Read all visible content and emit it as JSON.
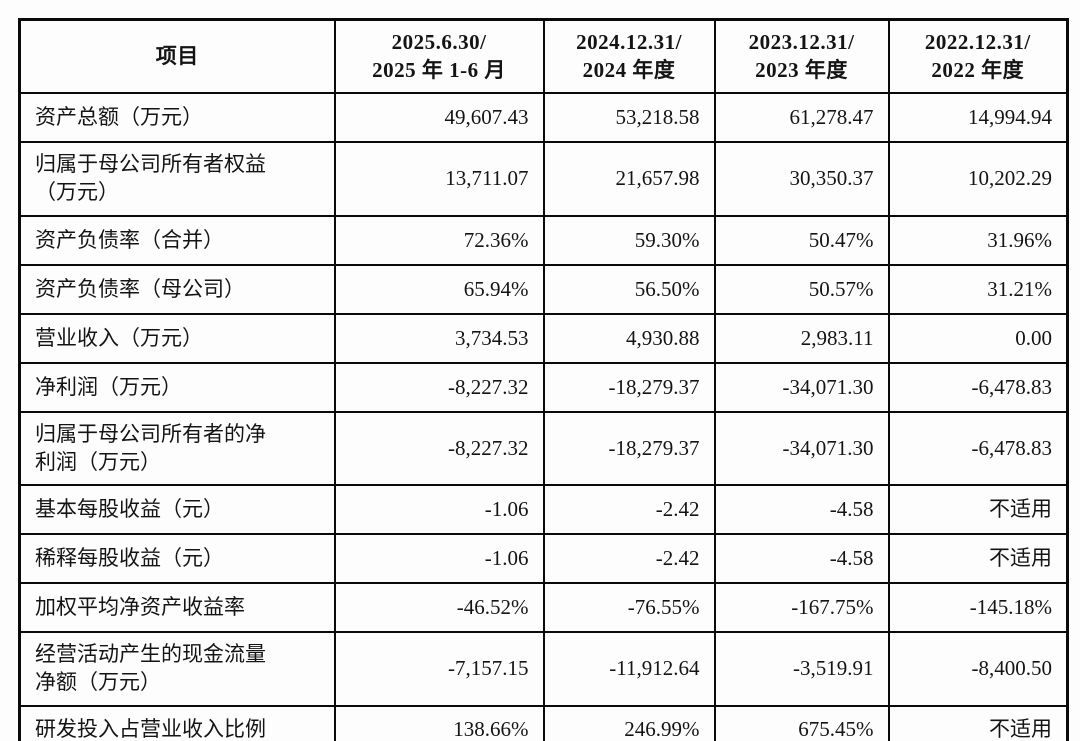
{
  "table": {
    "columns": [
      "项目",
      "2025.6.30/\n2025 年 1-6 月",
      "2024.12.31/\n2024 年度",
      "2023.12.31/\n2023 年度",
      "2022.12.31/\n2022 年度"
    ],
    "rows": [
      {
        "label": "资产总额（万元）",
        "values": [
          "49,607.43",
          "53,218.58",
          "61,278.47",
          "14,994.94"
        ]
      },
      {
        "label": "归属于母公司所有者权益\n（万元）",
        "values": [
          "13,711.07",
          "21,657.98",
          "30,350.37",
          "10,202.29"
        ]
      },
      {
        "label": "资产负债率（合并）",
        "values": [
          "72.36%",
          "59.30%",
          "50.47%",
          "31.96%"
        ]
      },
      {
        "label": "资产负债率（母公司）",
        "values": [
          "65.94%",
          "56.50%",
          "50.57%",
          "31.21%"
        ]
      },
      {
        "label": "营业收入（万元）",
        "values": [
          "3,734.53",
          "4,930.88",
          "2,983.11",
          "0.00"
        ]
      },
      {
        "label": "净利润（万元）",
        "values": [
          "-8,227.32",
          "-18,279.37",
          "-34,071.30",
          "-6,478.83"
        ]
      },
      {
        "label": "归属于母公司所有者的净\n利润（万元）",
        "values": [
          "-8,227.32",
          "-18,279.37",
          "-34,071.30",
          "-6,478.83"
        ]
      },
      {
        "label": "基本每股收益（元）",
        "values": [
          "-1.06",
          "-2.42",
          "-4.58",
          "不适用"
        ]
      },
      {
        "label": "稀释每股收益（元）",
        "values": [
          "-1.06",
          "-2.42",
          "-4.58",
          "不适用"
        ]
      },
      {
        "label": "加权平均净资产收益率",
        "values": [
          "-46.52%",
          "-76.55%",
          "-167.75%",
          "-145.18%"
        ]
      },
      {
        "label": "经营活动产生的现金流量\n净额（万元）",
        "values": [
          "-7,157.15",
          "-11,912.64",
          "-3,519.91",
          "-8,400.50"
        ]
      },
      {
        "label": "研发投入占营业收入比例",
        "values": [
          "138.66%",
          "246.99%",
          "675.45%",
          "不适用"
        ]
      }
    ],
    "border_color": "#0a0a0a",
    "text_color": "#141414",
    "background_color": "#fdfdfd"
  }
}
